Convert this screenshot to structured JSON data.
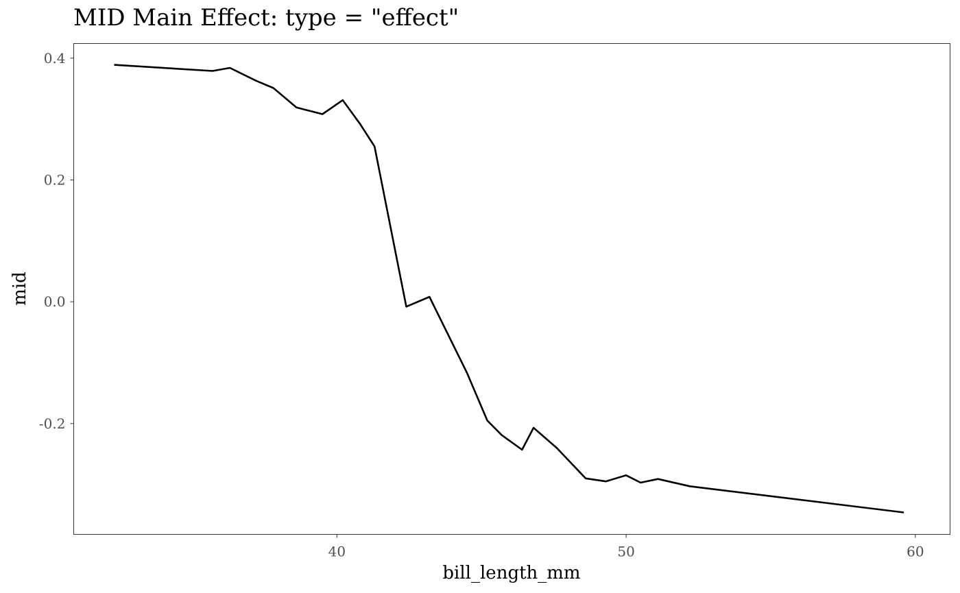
{
  "chart_data": {
    "type": "line",
    "title": "MID Main Effect: type = \"effect\"",
    "xlabel": "bill_length_mm",
    "ylabel": "mid",
    "xlim": [
      30.9,
      61.2
    ],
    "ylim": [
      -0.382,
      0.424
    ],
    "x_ticks": [
      40,
      50,
      60
    ],
    "x_tick_labels": [
      "40",
      "50",
      "60"
    ],
    "y_ticks": [
      -0.2,
      0.0,
      0.2,
      0.4
    ],
    "y_tick_labels": [
      "-0.2",
      "0.0",
      "0.2",
      "0.4"
    ],
    "grid": false,
    "line_color": "#000000",
    "series": [
      {
        "x": [
          32.3,
          35.7,
          36.3,
          37.2,
          37.8,
          38.6,
          39.5,
          40.2,
          40.8,
          41.3,
          42.4,
          43.2,
          44.5,
          45.2,
          45.7,
          46.4,
          46.8,
          47.6,
          48.6,
          49.3,
          50.0,
          50.5,
          51.1,
          52.2,
          59.6
        ],
        "y": [
          0.389,
          0.379,
          0.384,
          0.363,
          0.351,
          0.319,
          0.308,
          0.331,
          0.292,
          0.255,
          -0.008,
          0.008,
          -0.117,
          -0.195,
          -0.219,
          -0.243,
          -0.207,
          -0.24,
          -0.29,
          -0.295,
          -0.285,
          -0.297,
          -0.291,
          -0.303,
          -0.346
        ]
      }
    ]
  }
}
